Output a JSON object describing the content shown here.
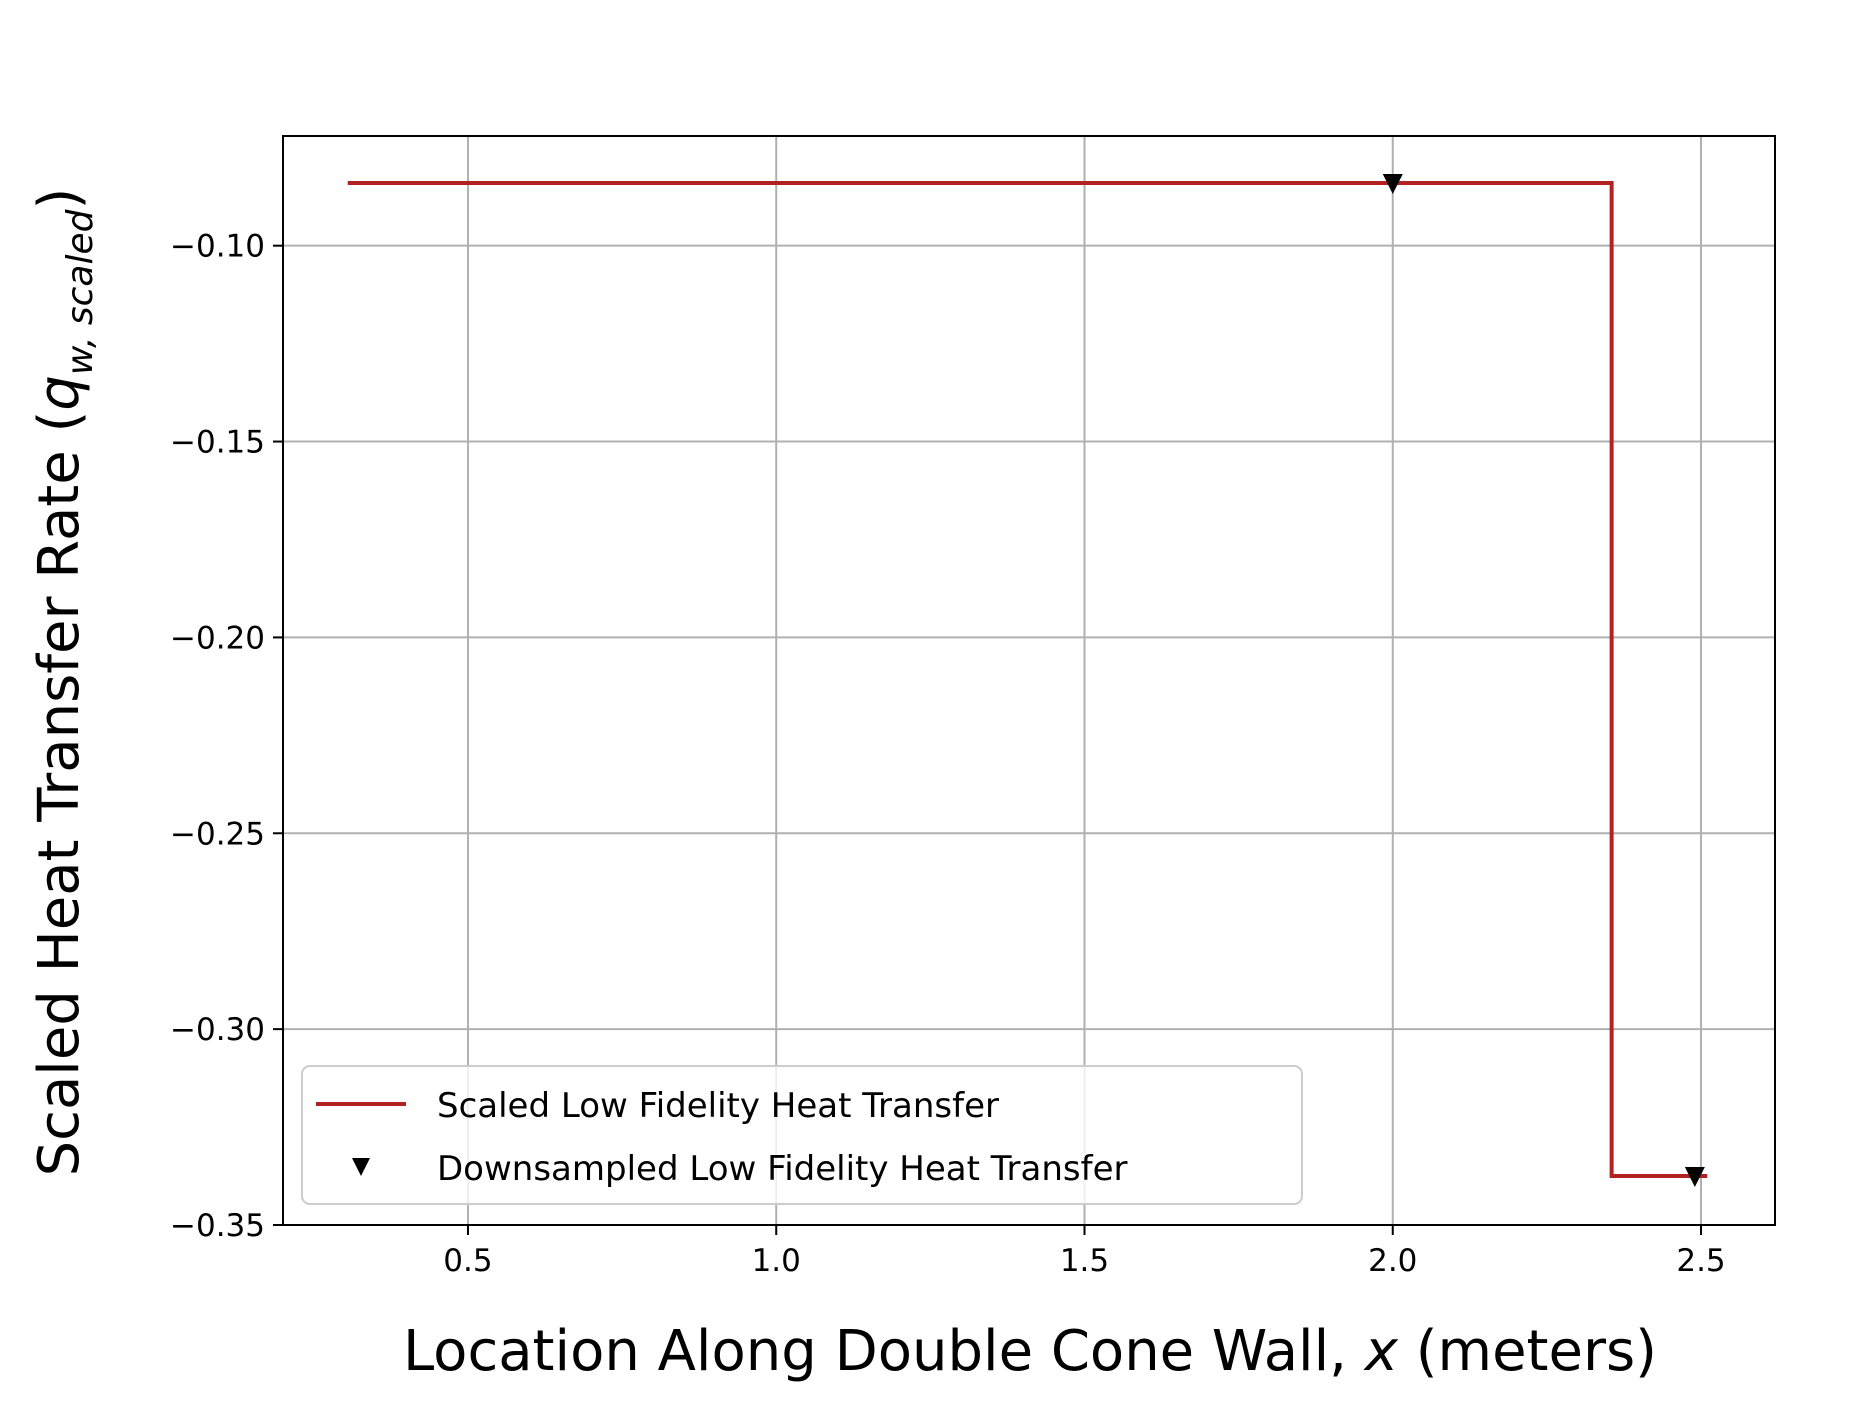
{
  "chart_data": {
    "type": "line",
    "xlabel": {
      "prefix": "Location Along Double Cone Wall, ",
      "variable": "x",
      "suffix": " (meters)"
    },
    "ylabel": {
      "prefix": "Scaled Heat Transfer Rate (",
      "symbol": "q",
      "subscript": "w, scaled",
      "suffix": ")"
    },
    "xlim": [
      0.2,
      2.62
    ],
    "ylim": [
      -0.35,
      -0.072
    ],
    "xticks": [
      {
        "value": 0.5,
        "label": "0.5"
      },
      {
        "value": 1.0,
        "label": "1.0"
      },
      {
        "value": 1.5,
        "label": "1.5"
      },
      {
        "value": 2.0,
        "label": "2.0"
      },
      {
        "value": 2.5,
        "label": "2.5"
      }
    ],
    "yticks": [
      {
        "value": -0.1,
        "label": "−0.10"
      },
      {
        "value": -0.15,
        "label": "−0.15"
      },
      {
        "value": -0.2,
        "label": "−0.20"
      },
      {
        "value": -0.25,
        "label": "−0.25"
      },
      {
        "value": -0.3,
        "label": "−0.30"
      },
      {
        "value": -0.35,
        "label": "−0.35"
      }
    ],
    "grid": true,
    "legend_position": "lower-left",
    "series": [
      {
        "name": "Scaled Low Fidelity Heat Transfer",
        "kind": "line",
        "color": "#b22222",
        "x": [
          0.305,
          2.355,
          2.355,
          2.51
        ],
        "y": [
          -0.084,
          -0.084,
          -0.3375,
          -0.3375
        ]
      },
      {
        "name": "Downsampled Low Fidelity Heat Transfer",
        "kind": "scatter",
        "marker": "triangle-down",
        "color": "#000000",
        "x": [
          2.0,
          2.49
        ],
        "y": [
          -0.084,
          -0.3375
        ]
      }
    ]
  }
}
